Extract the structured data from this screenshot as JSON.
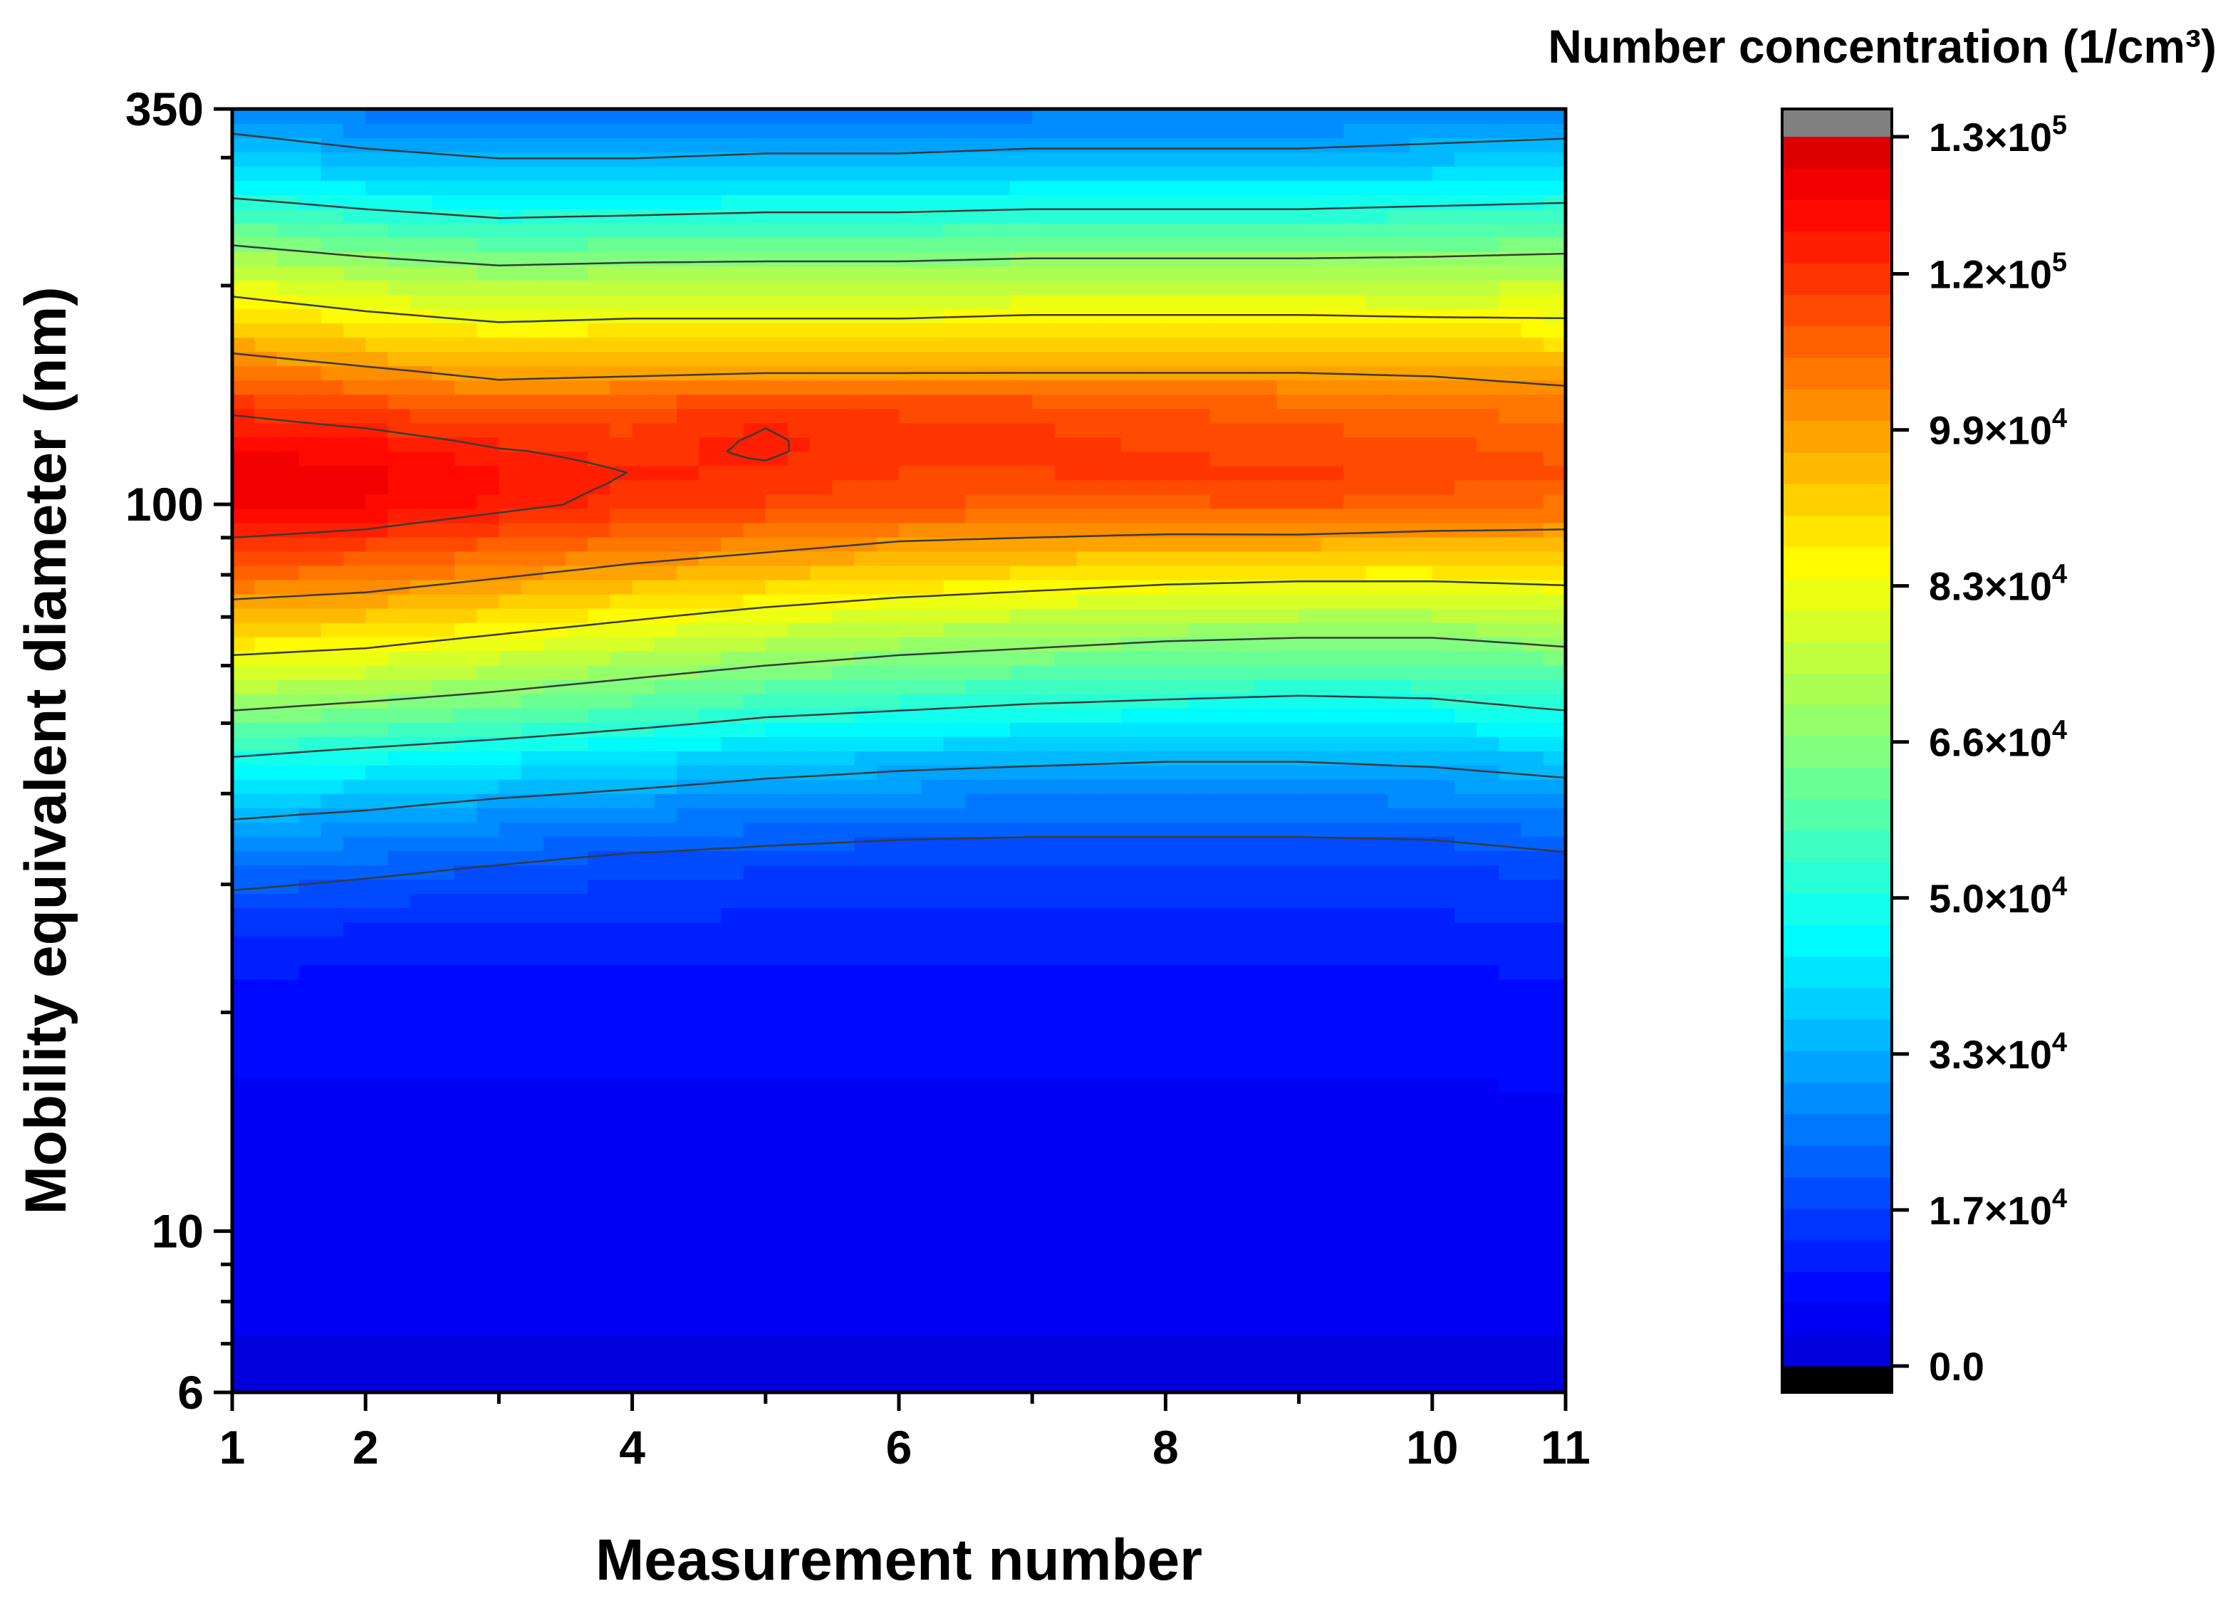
{
  "chart_data": {
    "type": "heatmap",
    "subtype": "filled-contour",
    "title": "",
    "xlabel": "Measurement number",
    "ylabel": "Mobility equivalent diameter (nm)",
    "x_scale": "linear",
    "y_scale": "log",
    "xlim": [
      1,
      11
    ],
    "ylim": [
      6,
      350
    ],
    "x_ticks": [
      1,
      2,
      4,
      6,
      8,
      10,
      11
    ],
    "x_tick_labels": [
      "1",
      "2",
      "4",
      "6",
      "8",
      "10",
      "11"
    ],
    "y_ticks": [
      6,
      10,
      100,
      350
    ],
    "y_tick_labels": [
      "6",
      "10",
      "100",
      "350"
    ],
    "x": [
      1,
      2,
      3,
      4,
      5,
      6,
      7,
      8,
      9,
      10,
      11
    ],
    "y": [
      6,
      8,
      10,
      14,
      18,
      22,
      26,
      32,
      38,
      45,
      52,
      60,
      70,
      80,
      90,
      100,
      110,
      120,
      135,
      150,
      170,
      200,
      240,
      290,
      350
    ],
    "z": [
      [
        2000,
        2000,
        2000,
        2000,
        2000,
        2000,
        2000,
        2000,
        2000,
        2000,
        2000
      ],
      [
        4000,
        4000,
        4000,
        4000,
        4000,
        4000,
        4000,
        4000,
        4000,
        4000,
        4000
      ],
      [
        5000,
        5000,
        5000,
        5000,
        5000,
        5000,
        5000,
        5000,
        5000,
        5000,
        5000
      ],
      [
        6000,
        6000,
        6000,
        6000,
        6000,
        6000,
        6000,
        6000,
        6000,
        6000,
        6000
      ],
      [
        7000,
        7000,
        7000,
        7000,
        7000,
        7000,
        7000,
        7000,
        7000,
        7000,
        7500
      ],
      [
        9000,
        9000,
        9000,
        9000,
        9000,
        9000,
        9000,
        9000,
        9000,
        9000,
        9500
      ],
      [
        14000,
        13000,
        12000,
        12000,
        12000,
        12000,
        12000,
        12000,
        12000,
        12000,
        13000
      ],
      [
        24000,
        22000,
        20000,
        18000,
        17000,
        16000,
        16000,
        16000,
        16000,
        16000,
        18000
      ],
      [
        35000,
        33000,
        30000,
        28000,
        26000,
        25000,
        24000,
        24000,
        24000,
        25000,
        27000
      ],
      [
        50000,
        47000,
        44000,
        41000,
        38000,
        36000,
        35000,
        34000,
        34000,
        35000,
        37000
      ],
      [
        66000,
        63000,
        60000,
        56000,
        52000,
        50000,
        48000,
        47000,
        46000,
        47000,
        50000
      ],
      [
        80000,
        78000,
        74000,
        70000,
        66000,
        63000,
        61000,
        59000,
        58000,
        58000,
        61000
      ],
      [
        94000,
        92000,
        88000,
        84000,
        80000,
        77000,
        75000,
        73000,
        72000,
        72000,
        74000
      ],
      [
        106000,
        104000,
        100000,
        96000,
        93000,
        90000,
        88000,
        86000,
        85000,
        85000,
        86000
      ],
      [
        116000,
        114000,
        110000,
        106000,
        103000,
        100000,
        99000,
        98000,
        98000,
        97000,
        97000
      ],
      [
        124000,
        122000,
        118000,
        114000,
        112000,
        109000,
        108000,
        108000,
        109000,
        107000,
        105000
      ],
      [
        125000,
        123000,
        119000,
        116000,
        115000,
        112000,
        112000,
        113000,
        113000,
        111000,
        109000
      ],
      [
        122000,
        120000,
        116000,
        114000,
        117000,
        113000,
        113000,
        112000,
        111000,
        110000,
        108000
      ],
      [
        115000,
        112000,
        108000,
        110000,
        115000,
        112000,
        112000,
        109000,
        107000,
        106000,
        104000
      ],
      [
        106000,
        102000,
        98000,
        99000,
        100000,
        100000,
        100000,
        100000,
        100000,
        99000,
        97000
      ],
      [
        94000,
        90000,
        87000,
        88000,
        88000,
        88000,
        89000,
        89000,
        89000,
        88000,
        87000
      ],
      [
        80000,
        76000,
        73000,
        74000,
        74000,
        74000,
        75000,
        75000,
        75000,
        75000,
        76000
      ],
      [
        60000,
        56000,
        53000,
        54000,
        55000,
        55000,
        56000,
        56000,
        56000,
        57000,
        58000
      ],
      [
        40000,
        37000,
        35000,
        35000,
        36000,
        36000,
        37000,
        37000,
        37000,
        38000,
        39000
      ],
      [
        28000,
        25000,
        23000,
        23000,
        24000,
        24000,
        25000,
        25000,
        25000,
        26000,
        27000
      ]
    ],
    "contour_line_levels": [
      20000,
      33000,
      50000,
      66000,
      83000,
      99000,
      116000
    ],
    "colorbar": {
      "title": "Number concentration (1/cm³)",
      "min": 0,
      "max": 130000,
      "step": 3300,
      "tick_values": [
        0,
        16500,
        33000,
        49500,
        66000,
        82500,
        99000,
        115500,
        130000
      ],
      "tick_labels": [
        {
          "mantissa": "0.0",
          "exp": ""
        },
        {
          "mantissa": "1.7×10",
          "exp": "4"
        },
        {
          "mantissa": "3.3×10",
          "exp": "4"
        },
        {
          "mantissa": "5.0×10",
          "exp": "4"
        },
        {
          "mantissa": "6.6×10",
          "exp": "4"
        },
        {
          "mantissa": "8.3×10",
          "exp": "4"
        },
        {
          "mantissa": "9.9×10",
          "exp": "4"
        },
        {
          "mantissa": "1.2×10",
          "exp": "5"
        },
        {
          "mantissa": "1.3×10",
          "exp": "5"
        }
      ],
      "under_color": "#000000",
      "over_color": "#808080"
    }
  }
}
